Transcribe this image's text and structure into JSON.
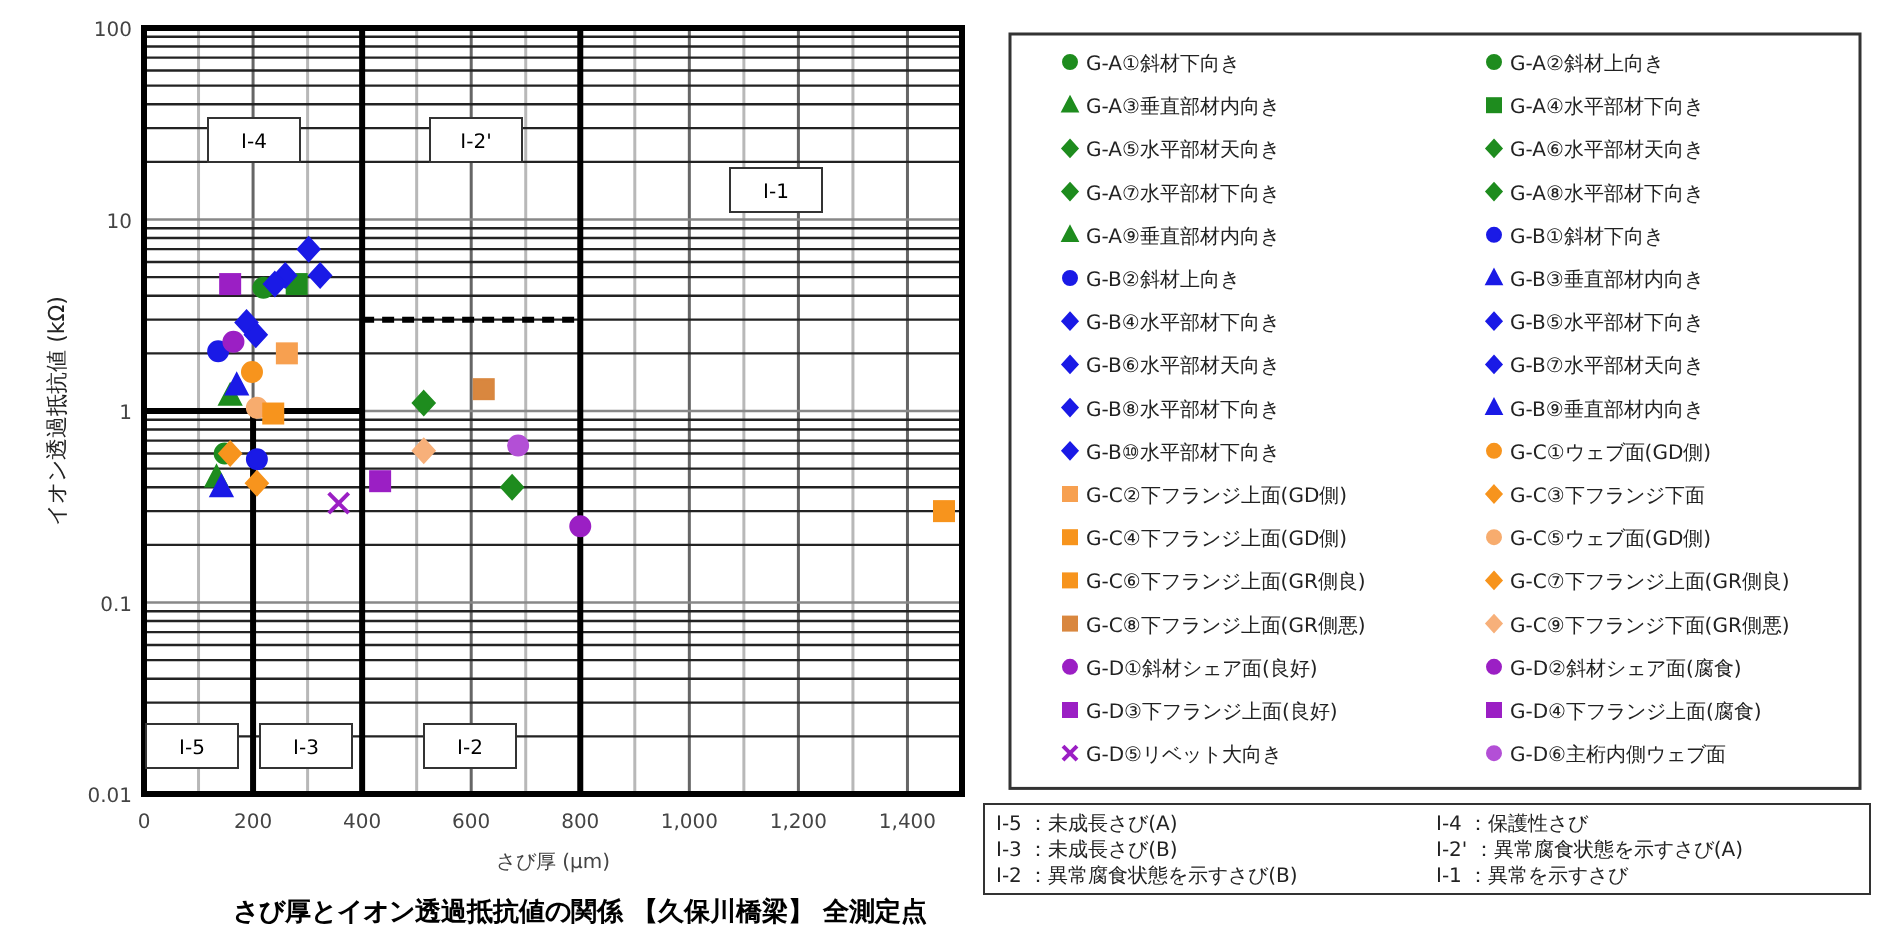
{
  "chart_data": {
    "type": "scatter",
    "title": "さび厚とイオン透過抵抗値の関係 【久保川橋梁】 全測定点",
    "xlabel": "さび厚 (μm)",
    "ylabel": "イオン透過抵抗値 (kΩ)",
    "xlim": [
      0,
      1500
    ],
    "xticks": [
      0,
      200,
      400,
      600,
      800,
      {
        "value": 1000,
        "label": "1,000"
      },
      {
        "value": 1200,
        "label": "1,200"
      },
      {
        "value": 1400,
        "label": "1,400"
      }
    ],
    "ylim": [
      0.01,
      100
    ],
    "yticks": [
      0.01,
      0.1,
      1,
      10,
      100
    ],
    "log": "y",
    "grid": true,
    "legend": "right",
    "annotations": [
      "I-4",
      "I-2'",
      "I-1",
      "I-5",
      "I-3",
      "I-2",
      "I-5 ：未成長さび(A)",
      "I-4 ：保護性さび",
      "I-3 ：未成長さび(B)",
      "I-2' ：異常腐食状態を示すさび(A)",
      "I-2 ：異常腐食状態を示すさび(B)",
      "I-1 ：異常を示すさび"
    ],
    "series": [
      {
        "name": "G-A①斜材下向き",
        "color": "#1e8c1e",
        "marker": "circle",
        "x": [
          219
        ],
        "values": [
          4.4
        ]
      },
      {
        "name": "G-A②斜材上向き",
        "color": "#1e8c1e",
        "marker": "circle",
        "x": [
          148
        ],
        "values": [
          0.6
        ]
      },
      {
        "name": "G-A③垂直部材内向き",
        "color": "#1e8c1e",
        "marker": "triangle",
        "x": [
          158
        ],
        "values": [
          1.2
        ]
      },
      {
        "name": "G-A④水平部材下向き",
        "color": "#1e8c1e",
        "marker": "square",
        "x": [
          280
        ],
        "values": [
          4.6
        ]
      },
      {
        "name": "G-A⑤水平部材天向き",
        "color": "#1e8c1e",
        "marker": "diamond",
        "x": [
          513
        ],
        "values": [
          1.1
        ]
      },
      {
        "name": "G-A⑥水平部材天向き",
        "color": "#1e8c1e",
        "marker": "diamond",
        "x": [
          675
        ],
        "values": [
          0.4
        ]
      },
      {
        "name": "G-A⑦水平部材下向き",
        "color": "#1e8c1e",
        "marker": "diamond",
        "values": [
          null
        ]
      },
      {
        "name": "G-A⑧水平部材下向き",
        "color": "#1e8c1e",
        "marker": "diamond",
        "values": [
          null
        ]
      },
      {
        "name": "G-A⑨垂直部材内向き",
        "color": "#1e8c1e",
        "marker": "triangle",
        "x": [
          133
        ],
        "values": [
          0.45
        ]
      },
      {
        "name": "G-B①斜材下向き",
        "color": "#1a1ae6",
        "marker": "circle",
        "x": [
          136
        ],
        "values": [
          2.05
        ]
      },
      {
        "name": "G-B②斜材上向き",
        "color": "#1a1ae6",
        "marker": "circle",
        "x": [
          207
        ],
        "values": [
          0.56
        ]
      },
      {
        "name": "G-B③垂直部材内向き",
        "color": "#1a1ae6",
        "marker": "triangle",
        "x": [
          170
        ],
        "values": [
          1.36
        ]
      },
      {
        "name": "G-B④水平部材下向き",
        "color": "#1a1ae6",
        "marker": "diamond",
        "x": [
          259
        ],
        "values": [
          5.1
        ]
      },
      {
        "name": "G-B⑤水平部材下向き",
        "color": "#1a1ae6",
        "marker": "diamond",
        "x": [
          302
        ],
        "values": [
          7
        ]
      },
      {
        "name": "G-B⑥水平部材天向き",
        "color": "#1a1ae6",
        "marker": "diamond",
        "x": [
          323
        ],
        "values": [
          5.1
        ]
      },
      {
        "name": "G-B⑦水平部材天向き",
        "color": "#1a1ae6",
        "marker": "diamond",
        "x": [
          240
        ],
        "values": [
          4.6
        ]
      },
      {
        "name": "G-B⑧水平部材下向き",
        "color": "#1a1ae6",
        "marker": "diamond",
        "x": [
          188
        ],
        "values": [
          2.9
        ]
      },
      {
        "name": "G-B⑨垂直部材内向き",
        "color": "#1a1ae6",
        "marker": "triangle",
        "x": [
          142
        ],
        "values": [
          0.4
        ]
      },
      {
        "name": "G-B⑩水平部材下向き",
        "color": "#1a1ae6",
        "marker": "diamond",
        "x": [
          205
        ],
        "values": [
          2.5
        ]
      },
      {
        "name": "G-C①ウェブ面(GD側)",
        "color": "#f7941d",
        "marker": "circle",
        "x": [
          198
        ],
        "values": [
          1.6
        ]
      },
      {
        "name": "G-C②下フランジ上面(GD側)",
        "color": "#f7a050",
        "marker": "square",
        "x": [
          262
        ],
        "values": [
          2
        ]
      },
      {
        "name": "G-C③下フランジ下面",
        "color": "#f7941d",
        "marker": "diamond",
        "x": [
          207
        ],
        "values": [
          0.42
        ]
      },
      {
        "name": "G-C④下フランジ上面(GD側)",
        "color": "#f7941d",
        "marker": "square",
        "x": [
          1467
        ],
        "values": [
          0.3
        ]
      },
      {
        "name": "G-C⑤ウェブ面(GD側)",
        "color": "#f7ac6e",
        "marker": "circle",
        "x": [
          207
        ],
        "values": [
          1.04
        ]
      },
      {
        "name": "G-C⑥下フランジ上面(GR側良)",
        "color": "#f7941d",
        "marker": "square",
        "x": [
          237
        ],
        "values": [
          0.97
        ]
      },
      {
        "name": "G-C⑦下フランジ上面(GR側良)",
        "color": "#f7941d",
        "marker": "diamond",
        "x": [
          158
        ],
        "values": [
          0.6
        ]
      },
      {
        "name": "G-C⑧下フランジ上面(GR側悪)",
        "color": "#d9873f",
        "marker": "square",
        "x": [
          623
        ],
        "values": [
          1.3
        ]
      },
      {
        "name": "G-C⑨下フランジ下面(GR側悪)",
        "color": "#f7b07a",
        "marker": "diamond",
        "x": [
          513
        ],
        "values": [
          0.62
        ]
      },
      {
        "name": "G-D①斜材シェア面(良好)",
        "color": "#9b1fc4",
        "marker": "circle",
        "x": [
          164
        ],
        "values": [
          2.3
        ]
      },
      {
        "name": "G-D②斜材シェア面(腐食)",
        "color": "#9b1fc4",
        "marker": "circle",
        "x": [
          800
        ],
        "values": [
          0.25
        ]
      },
      {
        "name": "G-D③下フランジ上面(良好)",
        "color": "#9b1fc4",
        "marker": "square",
        "x": [
          158
        ],
        "values": [
          4.6
        ]
      },
      {
        "name": "G-D④下フランジ上面(腐食)",
        "color": "#9b1fc4",
        "marker": "square",
        "x": [
          433
        ],
        "values": [
          0.43
        ]
      },
      {
        "name": "G-D⑤リベット大向き",
        "color": "#9b1fc4",
        "marker": "cross",
        "x": [
          357
        ],
        "values": [
          0.33
        ]
      },
      {
        "name": "G-D⑥主桁内側ウェブ面",
        "color": "#b34fd6",
        "marker": "circle",
        "x": [
          686
        ],
        "values": [
          0.66
        ]
      },
      {
        "type": "line",
        "color": "#000000",
        "line_style": "solid",
        "x": [
          200,
          200
        ],
        "values": [
          0.01,
          1
        ]
      },
      {
        "type": "line",
        "color": "#000000",
        "line_style": "solid",
        "x": [
          0,
          400
        ],
        "values": [
          1,
          1
        ]
      },
      {
        "type": "line",
        "color": "#000000",
        "line_style": "dashed",
        "x": [
          400,
          800
        ],
        "values": [
          3,
          3
        ]
      }
    ],
    "ref_lines": [
      {
        "axis": "x",
        "value": 400,
        "color": "#000000"
      },
      {
        "axis": "x",
        "value": 800,
        "color": "#000000"
      }
    ]
  }
}
